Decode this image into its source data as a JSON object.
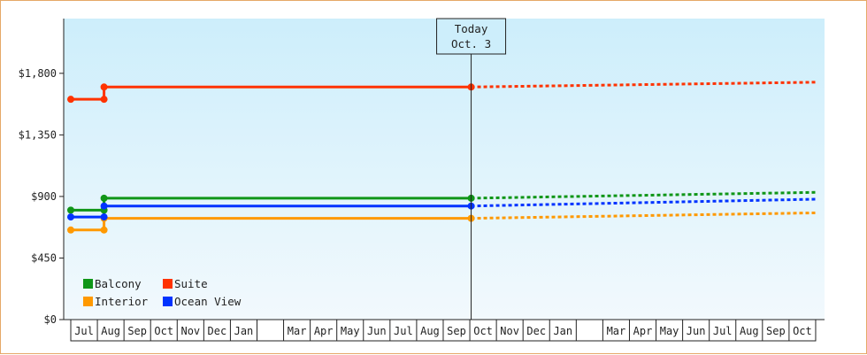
{
  "chart_data": {
    "type": "line",
    "ylim": [
      0,
      2200
    ],
    "y_ticks": [
      {
        "value": 0,
        "label": "$0"
      },
      {
        "value": 450,
        "label": "$450"
      },
      {
        "value": 900,
        "label": "$900"
      },
      {
        "value": 1350,
        "label": "$1,350"
      },
      {
        "value": 1800,
        "label": "$1,800"
      }
    ],
    "months": [
      "Jul",
      "Aug",
      "Sep",
      "Oct",
      "Nov",
      "Dec",
      "Jan",
      "",
      "Mar",
      "Apr",
      "May",
      "Jun",
      "Jul",
      "Aug",
      "Sep",
      "Oct",
      "Nov",
      "Dec",
      "Jan",
      "",
      "Mar",
      "Apr",
      "May",
      "Jun",
      "Jul",
      "Aug",
      "Sep",
      "Oct"
    ],
    "today": {
      "line1": "Today",
      "line2": "Oct. 3",
      "month_index": 15.05
    },
    "series": [
      {
        "name": "Balcony",
        "color": "#109618",
        "history": [
          [
            0,
            800
          ],
          [
            1.25,
            800
          ],
          [
            1.25,
            887
          ],
          [
            15.05,
            887
          ]
        ],
        "forecast": [
          [
            15.05,
            887
          ],
          [
            28,
            930
          ]
        ]
      },
      {
        "name": "Suite",
        "color": "#ff3300",
        "history": [
          [
            0,
            1610
          ],
          [
            1.25,
            1610
          ],
          [
            1.25,
            1700
          ],
          [
            15.05,
            1700
          ]
        ],
        "forecast": [
          [
            15.05,
            1700
          ],
          [
            28,
            1735
          ]
        ]
      },
      {
        "name": "Interior",
        "color": "#ff9900",
        "history": [
          [
            0,
            655
          ],
          [
            1.25,
            655
          ],
          [
            1.25,
            740
          ],
          [
            15.05,
            740
          ]
        ],
        "forecast": [
          [
            15.05,
            740
          ],
          [
            28,
            780
          ]
        ]
      },
      {
        "name": "Ocean View",
        "color": "#0033ff",
        "history": [
          [
            0,
            750
          ],
          [
            1.25,
            750
          ],
          [
            1.25,
            830
          ],
          [
            15.05,
            830
          ]
        ],
        "forecast": [
          [
            15.05,
            830
          ],
          [
            28,
            880
          ]
        ]
      }
    ],
    "markers": [
      {
        "series": 0,
        "points": [
          [
            0,
            800
          ],
          [
            1.25,
            800
          ],
          [
            1.25,
            887
          ],
          [
            15.05,
            887
          ]
        ]
      },
      {
        "series": 1,
        "points": [
          [
            0,
            1610
          ],
          [
            1.25,
            1610
          ],
          [
            1.25,
            1700
          ],
          [
            15.05,
            1700
          ]
        ]
      },
      {
        "series": 2,
        "points": [
          [
            0,
            655
          ],
          [
            1.25,
            655
          ],
          [
            1.25,
            740
          ],
          [
            15.05,
            740
          ]
        ]
      },
      {
        "series": 3,
        "points": [
          [
            0,
            750
          ],
          [
            1.25,
            750
          ],
          [
            1.25,
            830
          ],
          [
            15.05,
            830
          ]
        ]
      }
    ],
    "legend": [
      {
        "name": "Balcony",
        "color": "#109618"
      },
      {
        "name": "Suite",
        "color": "#ff3300"
      },
      {
        "name": "Interior",
        "color": "#ff9900"
      },
      {
        "name": "Ocean View",
        "color": "#0033ff"
      }
    ],
    "legend_position": "bottom-left"
  }
}
